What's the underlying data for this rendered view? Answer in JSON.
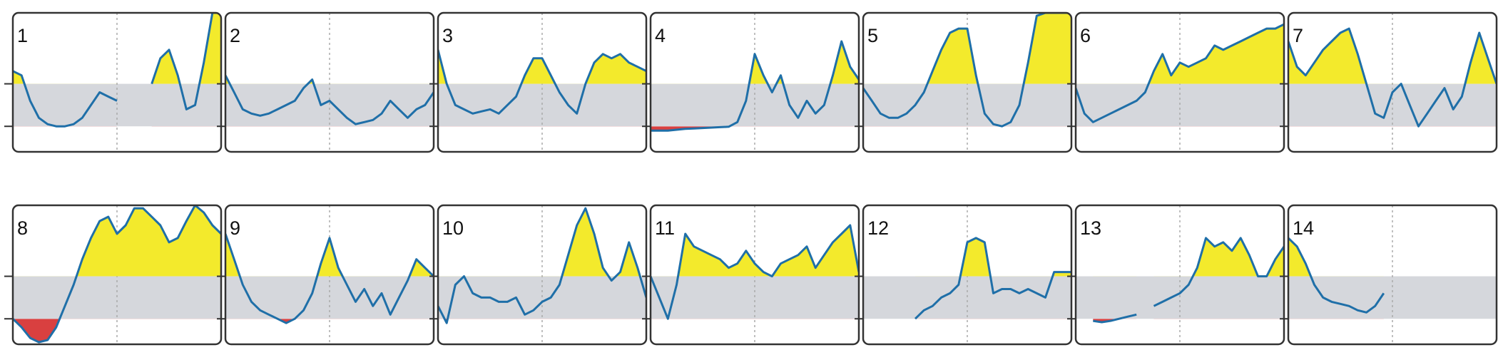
{
  "chart_data": [
    {
      "type": "line",
      "title": "1",
      "values": [
        1.3,
        1.2,
        0.6,
        0.2,
        0.05,
        0.0,
        0.0,
        0.05,
        0.2,
        0.5,
        0.8,
        0.7,
        0.6,
        null,
        null,
        null,
        1.0,
        1.6,
        1.8,
        1.2,
        0.4,
        0.5,
        1.5,
        2.67,
        2.67
      ],
      "ylim": [
        -0.6,
        2.67
      ],
      "yticks": [
        0,
        1
      ],
      "band": [
        0,
        1
      ],
      "color": "#1f6fa8",
      "band_color": "#d5d7dc",
      "above_color": "#f3ea2c",
      "below_color": "#d94040"
    },
    {
      "type": "line",
      "title": "2",
      "values": [
        1.2,
        0.8,
        0.4,
        0.3,
        0.25,
        0.3,
        0.4,
        0.5,
        0.6,
        0.9,
        1.1,
        0.5,
        0.6,
        0.4,
        0.2,
        0.05,
        0.1,
        0.15,
        0.3,
        0.6,
        0.4,
        0.2,
        0.4,
        0.5,
        0.8
      ],
      "ylim": [
        -0.6,
        2.67
      ],
      "yticks": [
        0,
        1
      ],
      "band": [
        0,
        1
      ],
      "color": "#1f6fa8",
      "band_color": "#d5d7dc",
      "above_color": "#f3ea2c",
      "below_color": "#d94040"
    },
    {
      "type": "line",
      "title": "3",
      "values": [
        1.8,
        1.0,
        0.5,
        0.4,
        0.3,
        0.35,
        0.4,
        0.3,
        0.5,
        0.7,
        1.2,
        1.6,
        1.6,
        1.2,
        0.8,
        0.5,
        0.3,
        1.0,
        1.5,
        1.7,
        1.6,
        1.7,
        1.5,
        1.4,
        1.3
      ],
      "ylim": [
        -0.6,
        2.67
      ],
      "yticks": [
        0,
        1
      ],
      "band": [
        0,
        1
      ],
      "color": "#1f6fa8",
      "band_color": "#d5d7dc",
      "above_color": "#f3ea2c",
      "below_color": "#d94040"
    },
    {
      "type": "line",
      "title": "4",
      "values": [
        -0.1,
        -0.1,
        -0.1,
        -0.08,
        -0.06,
        -0.05,
        -0.04,
        -0.03,
        -0.02,
        -0.01,
        0.1,
        0.6,
        1.7,
        1.2,
        0.8,
        1.2,
        0.5,
        0.2,
        0.6,
        0.3,
        0.5,
        1.2,
        2.0,
        1.4,
        1.1
      ],
      "ylim": [
        -0.6,
        2.67
      ],
      "yticks": [
        0,
        1
      ],
      "band": [
        0,
        1
      ],
      "color": "#1f6fa8",
      "band_color": "#d5d7dc",
      "above_color": "#f3ea2c",
      "below_color": "#d94040"
    },
    {
      "type": "line",
      "title": "5",
      "values": [
        0.9,
        0.6,
        0.3,
        0.2,
        0.2,
        0.3,
        0.5,
        0.8,
        1.3,
        1.8,
        2.2,
        2.3,
        2.3,
        1.2,
        0.3,
        0.05,
        0.0,
        0.1,
        0.5,
        1.5,
        2.6,
        2.67,
        2.67,
        2.67,
        2.67
      ],
      "ylim": [
        -0.6,
        2.67
      ],
      "yticks": [
        0,
        1
      ],
      "band": [
        0,
        1
      ],
      "color": "#1f6fa8",
      "band_color": "#d5d7dc",
      "above_color": "#f3ea2c",
      "below_color": "#d94040"
    },
    {
      "type": "line",
      "title": "6",
      "values": [
        0.9,
        0.3,
        0.1,
        0.2,
        0.3,
        0.4,
        0.5,
        0.6,
        0.8,
        1.3,
        1.7,
        1.2,
        1.5,
        1.4,
        1.5,
        1.6,
        1.9,
        1.8,
        1.9,
        2.0,
        2.1,
        2.2,
        2.3,
        2.3,
        2.4
      ],
      "ylim": [
        -0.6,
        2.67
      ],
      "yticks": [
        0,
        1
      ],
      "band": [
        0,
        1
      ],
      "color": "#1f6fa8",
      "band_color": "#d5d7dc",
      "above_color": "#f3ea2c",
      "below_color": "#d94040"
    },
    {
      "type": "line",
      "title": "7",
      "values": [
        2.0,
        1.4,
        1.2,
        1.5,
        1.8,
        2.0,
        2.2,
        2.3,
        1.7,
        1.0,
        0.3,
        0.2,
        0.8,
        1.0,
        0.5,
        0.0,
        0.3,
        0.6,
        0.9,
        0.4,
        0.7,
        1.5,
        2.2,
        1.6,
        1.0
      ],
      "ylim": [
        -0.6,
        2.67
      ],
      "yticks": [
        0,
        1
      ],
      "band": [
        0,
        1
      ],
      "color": "#1f6fa8",
      "band_color": "#d5d7dc",
      "above_color": "#f3ea2c",
      "below_color": "#d94040"
    },
    {
      "type": "line",
      "title": "8",
      "values": [
        0.0,
        -0.2,
        -0.45,
        -0.55,
        -0.5,
        -0.2,
        0.3,
        0.8,
        1.4,
        1.9,
        2.3,
        2.4,
        2.0,
        2.2,
        2.6,
        2.6,
        2.4,
        2.2,
        1.8,
        1.9,
        2.3,
        2.67,
        2.5,
        2.2,
        2.0
      ],
      "ylim": [
        -0.6,
        2.67
      ],
      "yticks": [
        0,
        1
      ],
      "band": [
        0,
        1
      ],
      "color": "#1f6fa8",
      "band_color": "#d5d7dc",
      "above_color": "#f3ea2c",
      "below_color": "#d94040"
    },
    {
      "type": "line",
      "title": "9",
      "values": [
        2.0,
        1.4,
        0.8,
        0.4,
        0.2,
        0.1,
        0.0,
        -0.1,
        0.0,
        0.2,
        0.6,
        1.3,
        1.9,
        1.2,
        0.8,
        0.4,
        0.7,
        0.3,
        0.6,
        0.1,
        0.5,
        0.9,
        1.4,
        1.2,
        1.0
      ],
      "ylim": [
        -0.6,
        2.67
      ],
      "yticks": [
        0,
        1
      ],
      "band": [
        0,
        1
      ],
      "color": "#1f6fa8",
      "band_color": "#d5d7dc",
      "above_color": "#f3ea2c",
      "below_color": "#d94040"
    },
    {
      "type": "line",
      "title": "10",
      "values": [
        0.3,
        -0.1,
        0.8,
        1.0,
        0.6,
        0.5,
        0.5,
        0.4,
        0.4,
        0.5,
        0.1,
        0.2,
        0.4,
        0.5,
        0.8,
        1.5,
        2.2,
        2.6,
        2.0,
        1.2,
        0.9,
        1.1,
        1.8,
        1.2,
        0.5
      ],
      "ylim": [
        -0.6,
        2.67
      ],
      "yticks": [
        0,
        1
      ],
      "band": [
        0,
        1
      ],
      "color": "#1f6fa8",
      "band_color": "#d5d7dc",
      "above_color": "#f3ea2c",
      "below_color": "#d94040"
    },
    {
      "type": "line",
      "title": "11",
      "values": [
        1.0,
        0.5,
        0.0,
        0.8,
        2.0,
        1.7,
        1.6,
        1.5,
        1.4,
        1.2,
        1.3,
        1.6,
        1.3,
        1.1,
        1.0,
        1.3,
        1.4,
        1.5,
        1.7,
        1.2,
        1.5,
        1.8,
        2.0,
        2.2,
        1.1
      ],
      "ylim": [
        -0.6,
        2.67
      ],
      "yticks": [
        0,
        1
      ],
      "band": [
        0,
        1
      ],
      "color": "#1f6fa8",
      "band_color": "#d5d7dc",
      "above_color": "#f3ea2c",
      "below_color": "#d94040"
    },
    {
      "type": "line",
      "title": "12",
      "values": [
        null,
        null,
        null,
        null,
        null,
        null,
        0.0,
        0.2,
        0.3,
        0.5,
        0.6,
        0.8,
        1.8,
        1.9,
        1.8,
        0.6,
        0.7,
        0.7,
        0.6,
        0.7,
        0.6,
        0.5,
        1.1,
        1.1,
        1.1
      ],
      "ylim": [
        -0.6,
        2.67
      ],
      "yticks": [
        0,
        1
      ],
      "band": [
        0,
        1
      ],
      "color": "#1f6fa8",
      "band_color": "#d5d7dc",
      "above_color": "#f3ea2c",
      "below_color": "#d94040"
    },
    {
      "type": "line",
      "title": "13",
      "values": [
        null,
        null,
        -0.05,
        -0.08,
        -0.05,
        0.0,
        0.05,
        0.1,
        null,
        0.3,
        0.4,
        0.5,
        0.6,
        0.8,
        1.2,
        1.9,
        1.7,
        1.8,
        1.6,
        1.9,
        1.5,
        1.0,
        1.0,
        1.4,
        1.7
      ],
      "ylim": [
        -0.6,
        2.67
      ],
      "yticks": [
        0,
        1
      ],
      "band": [
        0,
        1
      ],
      "color": "#1f6fa8",
      "band_color": "#d5d7dc",
      "above_color": "#f3ea2c",
      "below_color": "#d94040"
    },
    {
      "type": "line",
      "title": "14",
      "values": [
        1.9,
        1.7,
        1.3,
        0.8,
        0.5,
        0.4,
        0.35,
        0.3,
        0.2,
        0.15,
        0.3,
        0.6,
        null,
        null,
        null,
        null,
        null,
        null,
        null,
        null,
        null,
        null,
        null,
        null,
        null
      ],
      "ylim": [
        -0.6,
        2.67
      ],
      "yticks": [
        0,
        1
      ],
      "band": [
        0,
        1
      ],
      "color": "#1f6fa8",
      "band_color": "#d5d7dc",
      "above_color": "#f3ea2c",
      "below_color": "#d94040"
    }
  ]
}
